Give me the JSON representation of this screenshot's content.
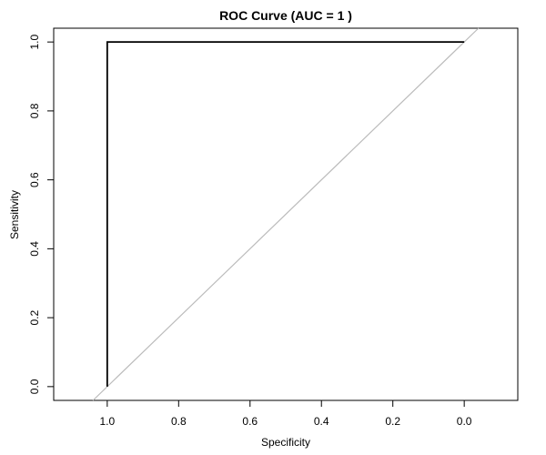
{
  "chart_data": {
    "type": "line",
    "title": "ROC Curve (AUC = 1 )",
    "xlabel": "Specificity",
    "ylabel": "Sensitivity",
    "x_reversed": true,
    "xlim": [
      1.15,
      -0.15
    ],
    "ylim": [
      -0.04,
      1.04
    ],
    "x_ticks": [
      "1.0",
      "0.8",
      "0.6",
      "0.4",
      "0.2",
      "0.0"
    ],
    "y_ticks": [
      "0.0",
      "0.2",
      "0.4",
      "0.6",
      "0.8",
      "1.0"
    ],
    "grid": false,
    "series": [
      {
        "color": "#000000",
        "points": [
          {
            "x": 1.0,
            "y": 0.0
          },
          {
            "x": 1.0,
            "y": 1.0
          },
          {
            "x": 0.0,
            "y": 1.0
          }
        ]
      }
    ],
    "reference_line": {
      "color": "#bbbbbb",
      "description": "diagonal",
      "from": {
        "x": 1.0,
        "y": 0.0
      },
      "to": {
        "x": 0.0,
        "y": 1.0
      }
    }
  }
}
